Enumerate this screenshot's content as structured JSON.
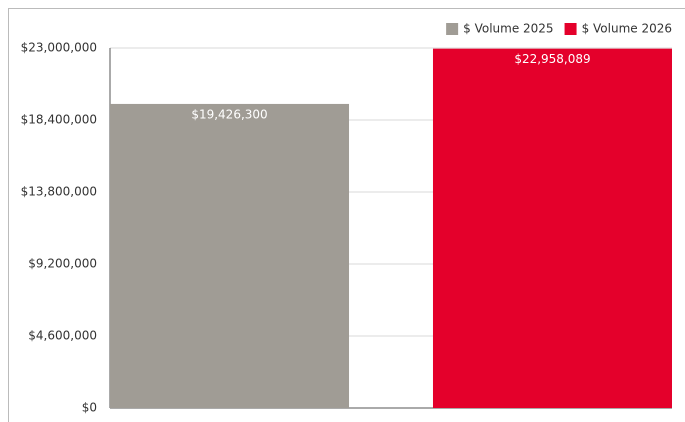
{
  "chart_data": {
    "type": "bar",
    "categories": [
      null
    ],
    "series": [
      {
        "name": "$ Volume 2025",
        "color": "#a09c95",
        "values": [
          19426300
        ],
        "value_labels": [
          "$19,426,300"
        ]
      },
      {
        "name": "$ Volume 2026",
        "color": "#e4002b",
        "values": [
          22958089
        ],
        "value_labels": [
          "$22,958,089"
        ]
      }
    ],
    "ylim": [
      0,
      23000000
    ],
    "yticks": [
      {
        "value": 0,
        "label": "$0"
      },
      {
        "value": 4600000,
        "label": "$4,600,000"
      },
      {
        "value": 9200000,
        "label": "$9,200,000"
      },
      {
        "value": 13800000,
        "label": "$13,800,000"
      },
      {
        "value": 18400000,
        "label": "$18,400,000"
      },
      {
        "value": 23000000,
        "label": "$23,000,000"
      }
    ],
    "grid": true,
    "legend": "top-right"
  }
}
